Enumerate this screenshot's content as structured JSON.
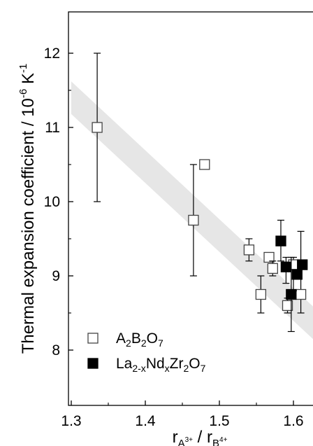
{
  "chart_data": {
    "type": "scatter",
    "xlabel": {
      "base1": "r",
      "sub1": "A",
      "sup1": "3+",
      "sep": " / ",
      "base2": "r",
      "sub2": "B",
      "sup2": "4+"
    },
    "ylabel": {
      "main": "Thermal expansion coefficient / 10",
      "sup1": "-6",
      "unit": " K",
      "sup2": "-1"
    },
    "xlim": [
      1.3,
      1.65
    ],
    "ylim": [
      7.5,
      12.5
    ],
    "x_ticks": [
      "1.3",
      "1.4",
      "1.5",
      "1.6"
    ],
    "y_ticks": [
      "8",
      "9",
      "10",
      "11",
      "12"
    ],
    "x_tick_values": [
      1.3,
      1.4,
      1.5,
      1.6
    ],
    "y_tick_values": [
      8,
      9,
      10,
      11,
      12
    ],
    "trend_band": {
      "x": [
        1.3,
        1.65
      ],
      "y": [
        11.4,
        8.15
      ],
      "half_width": 0.22
    },
    "series": [
      {
        "name_parts": [
          [
            "A",
            ""
          ],
          [
            "2",
            "sub"
          ],
          [
            "B",
            ""
          ],
          [
            "2",
            "sub"
          ],
          [
            "O",
            ""
          ],
          [
            "7",
            "sub"
          ]
        ],
        "marker": "open-square",
        "points": [
          {
            "x": 1.335,
            "y": 11.0,
            "err_low": 10.0,
            "err_high": 12.0
          },
          {
            "x": 1.48,
            "y": 10.5
          },
          {
            "x": 1.465,
            "y": 9.75,
            "err_low": 9.0,
            "err_high": 10.5
          },
          {
            "x": 1.54,
            "y": 9.35,
            "err_low": 9.2,
            "err_high": 9.5
          },
          {
            "x": 1.567,
            "y": 9.25
          },
          {
            "x": 1.572,
            "y": 9.1,
            "err_low": 9.0,
            "err_high": 9.2
          },
          {
            "x": 1.556,
            "y": 8.75,
            "err_low": 8.5,
            "err_high": 9.0
          },
          {
            "x": 1.592,
            "y": 8.6,
            "err_low": 8.5,
            "err_high": 8.7
          },
          {
            "x": 1.61,
            "y": 8.75,
            "err_low": 8.5,
            "err_high": 9.6
          },
          {
            "x": 1.6,
            "y": 9.15,
            "err_low": 8.8,
            "err_high": 9.25
          }
        ]
      },
      {
        "name_parts": [
          [
            "La",
            ""
          ],
          [
            "2-x",
            "sub"
          ],
          [
            "Nd",
            ""
          ],
          [
            "x",
            "sub"
          ],
          [
            "Zr",
            ""
          ],
          [
            "2",
            "sub"
          ],
          [
            "O",
            ""
          ],
          [
            "7",
            "sub"
          ]
        ],
        "marker": "filled-square",
        "points": [
          {
            "x": 1.583,
            "y": 9.47,
            "err_low": 9.2,
            "err_high": 9.75
          },
          {
            "x": 1.59,
            "y": 9.12,
            "err_low": 8.9,
            "err_high": 9.25
          },
          {
            "x": 1.597,
            "y": 8.75,
            "err_low": 8.25,
            "err_high": 9.25
          },
          {
            "x": 1.605,
            "y": 9.02
          },
          {
            "x": 1.612,
            "y": 9.15
          }
        ]
      }
    ]
  }
}
